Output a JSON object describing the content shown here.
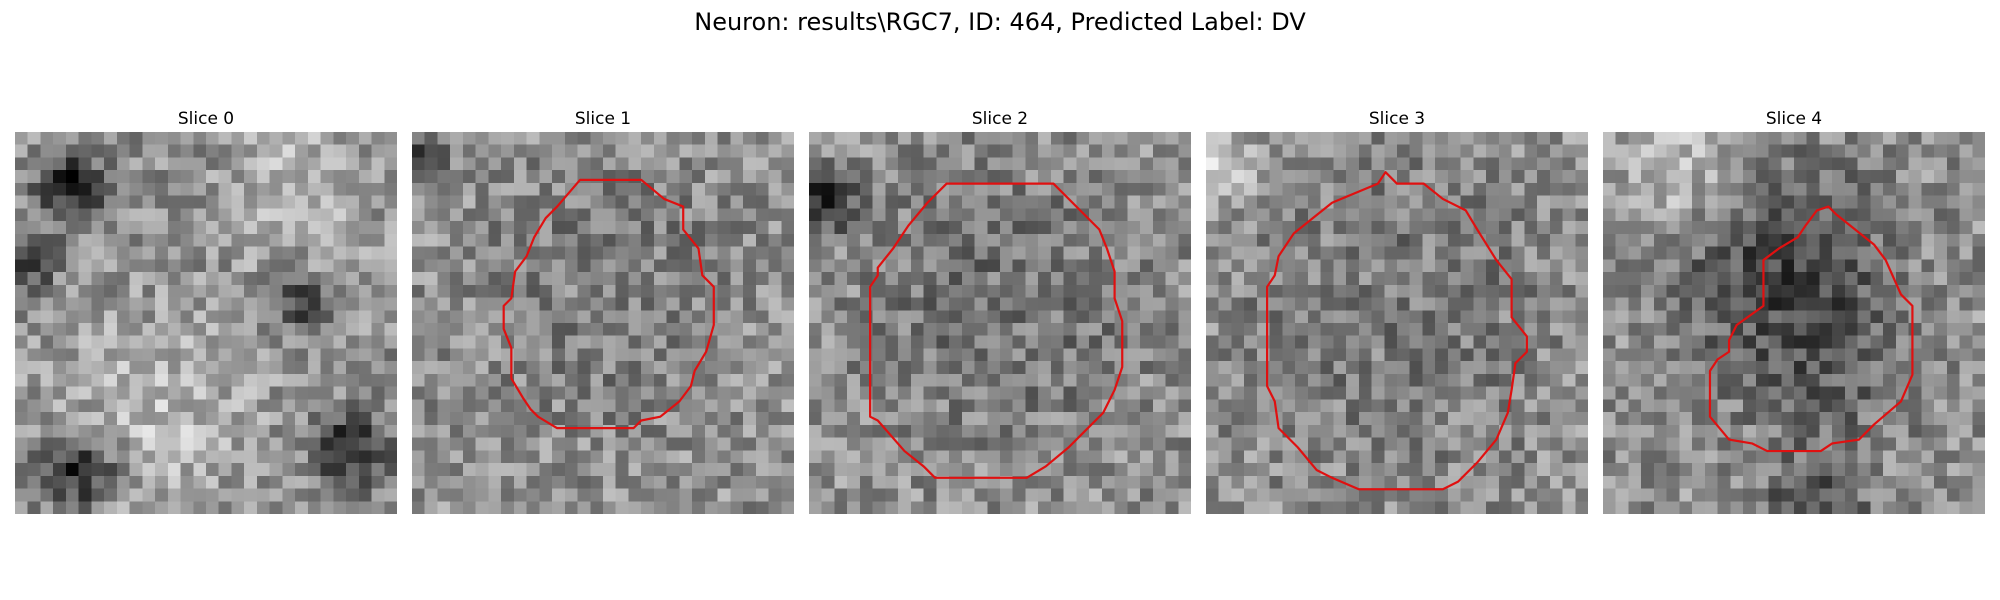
{
  "figure": {
    "suptitle": "Neuron: results\\RGC7, ID: 464, Predicted Label: DV"
  },
  "slices": [
    {
      "title": "Slice 0",
      "has_contour": false,
      "contour": []
    },
    {
      "title": "Slice 1",
      "has_contour": true,
      "contour": [
        [
          0.44,
          0.12
        ],
        [
          0.6,
          0.12
        ],
        [
          0.66,
          0.17
        ],
        [
          0.71,
          0.19
        ],
        [
          0.71,
          0.25
        ],
        [
          0.75,
          0.3
        ],
        [
          0.76,
          0.37
        ],
        [
          0.79,
          0.4
        ],
        [
          0.79,
          0.5
        ],
        [
          0.77,
          0.57
        ],
        [
          0.74,
          0.62
        ],
        [
          0.73,
          0.66
        ],
        [
          0.7,
          0.7
        ],
        [
          0.65,
          0.74
        ],
        [
          0.6,
          0.75
        ],
        [
          0.58,
          0.77
        ],
        [
          0.38,
          0.77
        ],
        [
          0.33,
          0.74
        ],
        [
          0.31,
          0.72
        ],
        [
          0.29,
          0.69
        ],
        [
          0.26,
          0.64
        ],
        [
          0.26,
          0.56
        ],
        [
          0.24,
          0.51
        ],
        [
          0.24,
          0.45
        ],
        [
          0.26,
          0.43
        ],
        [
          0.27,
          0.36
        ],
        [
          0.3,
          0.32
        ],
        [
          0.32,
          0.27
        ],
        [
          0.35,
          0.22
        ],
        [
          0.38,
          0.19
        ]
      ]
    },
    {
      "title": "Slice 2",
      "has_contour": true,
      "contour": [
        [
          0.36,
          0.13
        ],
        [
          0.64,
          0.13
        ],
        [
          0.72,
          0.21
        ],
        [
          0.76,
          0.25
        ],
        [
          0.78,
          0.3
        ],
        [
          0.8,
          0.36
        ],
        [
          0.8,
          0.43
        ],
        [
          0.82,
          0.49
        ],
        [
          0.82,
          0.61
        ],
        [
          0.8,
          0.67
        ],
        [
          0.77,
          0.73
        ],
        [
          0.72,
          0.78
        ],
        [
          0.68,
          0.82
        ],
        [
          0.62,
          0.87
        ],
        [
          0.57,
          0.9
        ],
        [
          0.33,
          0.9
        ],
        [
          0.3,
          0.87
        ],
        [
          0.25,
          0.83
        ],
        [
          0.18,
          0.75
        ],
        [
          0.16,
          0.74
        ],
        [
          0.16,
          0.4
        ],
        [
          0.18,
          0.37
        ],
        [
          0.18,
          0.35
        ],
        [
          0.22,
          0.3
        ],
        [
          0.26,
          0.24
        ],
        [
          0.31,
          0.18
        ]
      ]
    },
    {
      "title": "Slice 3",
      "has_contour": true,
      "contour": [
        [
          0.45,
          0.13
        ],
        [
          0.47,
          0.1
        ],
        [
          0.5,
          0.13
        ],
        [
          0.57,
          0.13
        ],
        [
          0.62,
          0.17
        ],
        [
          0.68,
          0.2
        ],
        [
          0.71,
          0.25
        ],
        [
          0.76,
          0.33
        ],
        [
          0.8,
          0.38
        ],
        [
          0.8,
          0.48
        ],
        [
          0.84,
          0.53
        ],
        [
          0.84,
          0.57
        ],
        [
          0.81,
          0.6
        ],
        [
          0.8,
          0.67
        ],
        [
          0.79,
          0.73
        ],
        [
          0.76,
          0.8
        ],
        [
          0.71,
          0.86
        ],
        [
          0.66,
          0.91
        ],
        [
          0.62,
          0.93
        ],
        [
          0.4,
          0.93
        ],
        [
          0.33,
          0.9
        ],
        [
          0.29,
          0.88
        ],
        [
          0.24,
          0.82
        ],
        [
          0.19,
          0.77
        ],
        [
          0.18,
          0.7
        ],
        [
          0.16,
          0.66
        ],
        [
          0.16,
          0.4
        ],
        [
          0.18,
          0.37
        ],
        [
          0.19,
          0.32
        ],
        [
          0.23,
          0.26
        ],
        [
          0.28,
          0.22
        ],
        [
          0.33,
          0.18
        ]
      ]
    },
    {
      "title": "Slice 4",
      "has_contour": true,
      "contour": [
        [
          0.56,
          0.2
        ],
        [
          0.59,
          0.19
        ],
        [
          0.61,
          0.21
        ],
        [
          0.66,
          0.25
        ],
        [
          0.71,
          0.29
        ],
        [
          0.74,
          0.33
        ],
        [
          0.78,
          0.42
        ],
        [
          0.81,
          0.45
        ],
        [
          0.81,
          0.63
        ],
        [
          0.78,
          0.7
        ],
        [
          0.71,
          0.76
        ],
        [
          0.67,
          0.8
        ],
        [
          0.6,
          0.81
        ],
        [
          0.57,
          0.83
        ],
        [
          0.43,
          0.83
        ],
        [
          0.39,
          0.81
        ],
        [
          0.33,
          0.8
        ],
        [
          0.28,
          0.74
        ],
        [
          0.28,
          0.62
        ],
        [
          0.3,
          0.59
        ],
        [
          0.33,
          0.57
        ],
        [
          0.33,
          0.54
        ],
        [
          0.35,
          0.5
        ],
        [
          0.42,
          0.45
        ],
        [
          0.42,
          0.33
        ],
        [
          0.46,
          0.3
        ],
        [
          0.51,
          0.27
        ],
        [
          0.53,
          0.24
        ]
      ]
    }
  ],
  "colors": {
    "contour": "#e01010",
    "background": "#ffffff"
  }
}
